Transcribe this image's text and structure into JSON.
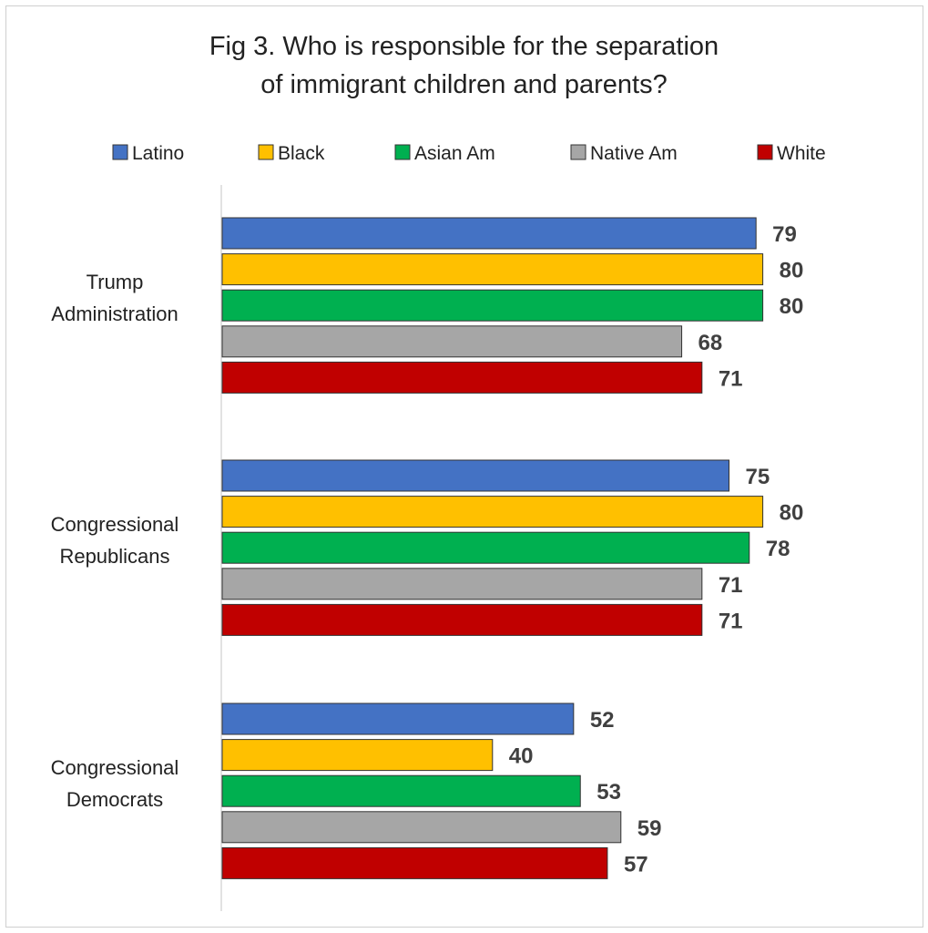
{
  "chart_data": {
    "type": "bar",
    "orientation": "horizontal",
    "title_lines": [
      "Fig 3. Who is responsible for the separation",
      "of immigrant children and parents?"
    ],
    "categories": [
      [
        "Trump",
        "Administration"
      ],
      [
        "Congressional",
        "Republicans"
      ],
      [
        "Congressional",
        "Democrats"
      ]
    ],
    "series": [
      {
        "name": "Latino",
        "color": "#4472c4",
        "values": [
          79,
          75,
          52
        ]
      },
      {
        "name": "Black",
        "color": "#ffc000",
        "values": [
          80,
          80,
          40
        ]
      },
      {
        "name": "Asian Am",
        "color": "#00b050",
        "values": [
          80,
          78,
          53
        ]
      },
      {
        "name": "Native Am",
        "color": "#a6a6a6",
        "values": [
          68,
          71,
          59
        ]
      },
      {
        "name": "White",
        "color": "#c00000",
        "values": [
          71,
          71,
          57
        ]
      }
    ],
    "legend_position": "top",
    "grid": false,
    "data_labels": true,
    "xlim": [
      0,
      80
    ]
  }
}
